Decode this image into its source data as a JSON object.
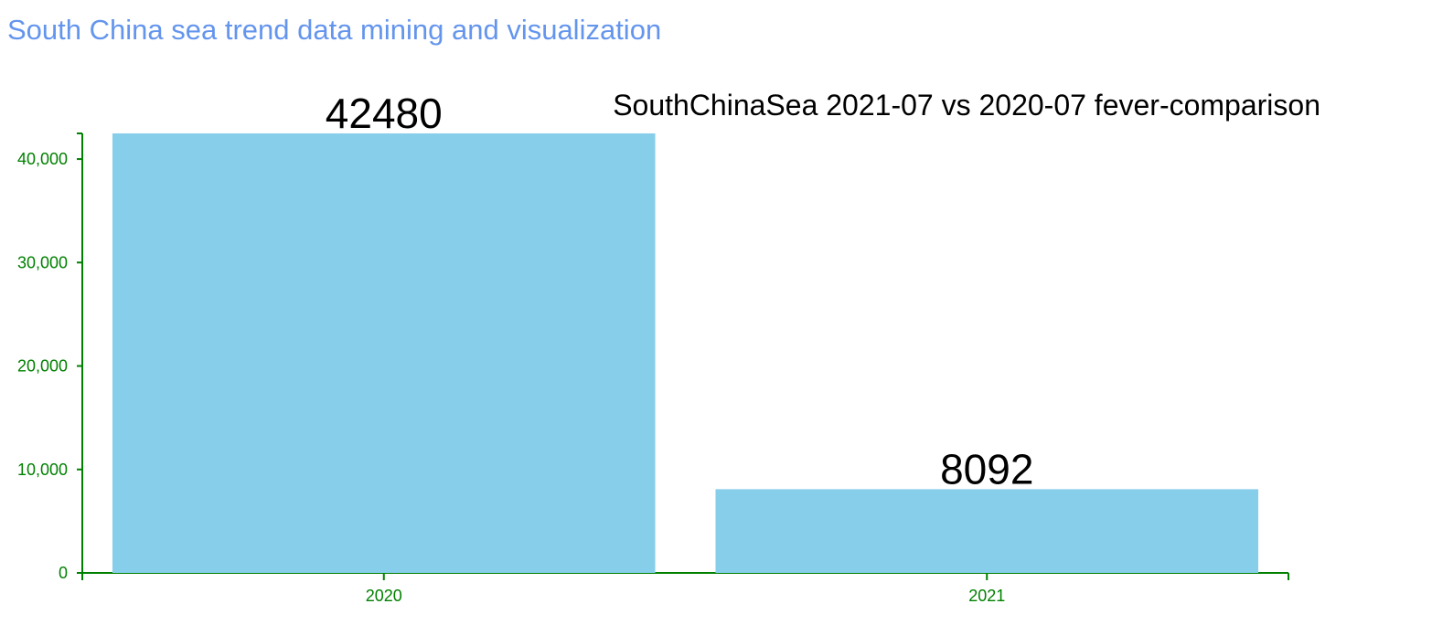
{
  "page": {
    "title": "South China sea trend data mining and visualization"
  },
  "colors": {
    "title": "#6495ed",
    "axis": "#008000",
    "bar": "#87ceeb",
    "value_label": "#000000"
  },
  "chart_data": {
    "type": "bar",
    "title": "SouthChinaSea 2021-07 vs 2020-07 fever-comparison",
    "categories": [
      "2020",
      "2021"
    ],
    "values": [
      42480,
      8092
    ],
    "value_labels": [
      "42480",
      "8092"
    ],
    "xlabel": "",
    "ylabel": "",
    "ylim": [
      0,
      42480
    ],
    "yticks": [
      0,
      10000,
      20000,
      30000,
      40000
    ],
    "ytick_labels": [
      "0",
      "10,000",
      "20,000",
      "30,000",
      "40,000"
    ],
    "grid": false,
    "legend": "none"
  }
}
